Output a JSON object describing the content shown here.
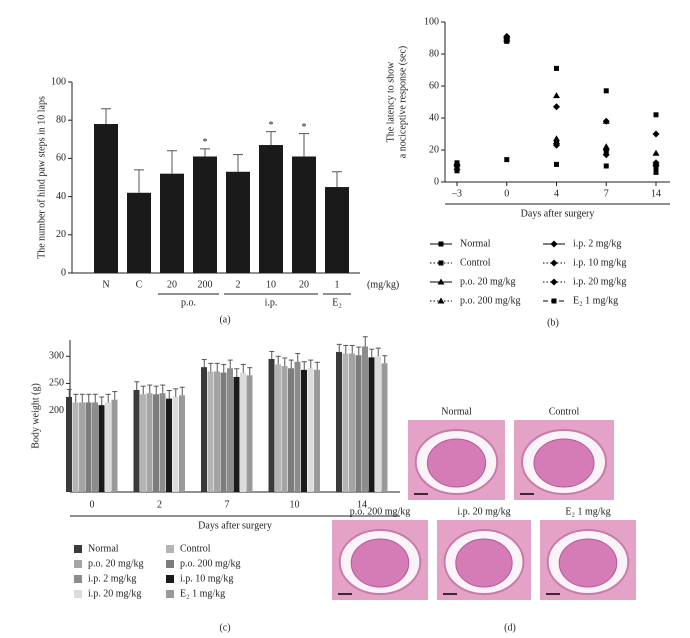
{
  "chart_data": [
    {
      "type": "bar",
      "ylabel": "The number of hind paw steps in 10 laps",
      "categories": [
        "N",
        "C",
        "20",
        "200",
        "2",
        "10",
        "20",
        "1"
      ],
      "groups": [
        null,
        null,
        "p.o.",
        "p.o.",
        "i.p.",
        "i.p.",
        "i.p.",
        "E₂"
      ],
      "unit": "(mg/kg)",
      "values": [
        78,
        42,
        52,
        61,
        53,
        67,
        61,
        45
      ],
      "errors": [
        8,
        12,
        12,
        4,
        9,
        7,
        12,
        8
      ],
      "markers": [
        null,
        null,
        null,
        "*",
        null,
        "*",
        "*",
        null
      ],
      "color": "#1a1a1a",
      "ylim": [
        0,
        100
      ],
      "yticks": [
        0,
        20,
        40,
        60,
        80,
        100
      ],
      "caption": "(a)"
    },
    {
      "type": "line",
      "ylabel": [
        "The latency to show",
        "a nociceptive response (sec)"
      ],
      "xlabel": "Days after surgery",
      "categories": [
        "–3",
        "0",
        "4",
        "7",
        "14"
      ],
      "ylim": [
        0,
        100
      ],
      "yticks": [
        0,
        20,
        40,
        60,
        80,
        100
      ],
      "series": [
        {
          "name": "Normal",
          "color": "#000000",
          "dash": "solid",
          "marker": "square",
          "values": [
            7,
            14,
            11,
            10,
            6
          ]
        },
        {
          "name": "Control",
          "color": "#000000",
          "dash": "dotted",
          "marker": "square",
          "values": [
            8,
            88,
            71,
            57,
            42
          ]
        },
        {
          "name": "p.o. 20 mg/kg",
          "color": "#000000",
          "dash": "solid",
          "marker": "triangle",
          "values": [
            9,
            90,
            54,
            38,
            18
          ]
        },
        {
          "name": "p.o. 200 mg/kg",
          "color": "#000000",
          "dash": "dotted",
          "marker": "triangle",
          "values": [
            9,
            89,
            27,
            22,
            12
          ]
        },
        {
          "name": "i.p. 2 mg/kg",
          "color": "#000000",
          "dash": "solid",
          "marker": "diamond",
          "values": [
            10,
            91,
            47,
            38,
            30
          ]
        },
        {
          "name": "i.p. 10 mg/kg",
          "color": "#000000",
          "dash": "dotted",
          "marker": "diamond",
          "values": [
            10,
            90,
            24,
            20,
            12
          ]
        },
        {
          "name": "i.p. 20 mg/kg",
          "color": "#000000",
          "dash": "dotted",
          "marker": "diamond",
          "values": [
            11,
            90,
            23,
            17,
            10
          ]
        },
        {
          "name": "E₂ 1 mg/kg",
          "color": "#000000",
          "dash": "dashed",
          "marker": "square",
          "values": [
            12,
            88,
            25,
            18,
            9
          ]
        }
      ],
      "caption": "(b)"
    },
    {
      "type": "bar",
      "ylabel": "Body weight (g)",
      "xlabel": "Days after surgery",
      "categories": [
        "0",
        "2",
        "7",
        "10",
        "14"
      ],
      "ylim": [
        50,
        330
      ],
      "yticks": [
        200,
        250,
        300
      ],
      "series": [
        {
          "name": "Normal",
          "color": "#3a3a3a",
          "values": [
            225,
            238,
            280,
            295,
            308
          ],
          "errors": [
            14,
            15,
            14,
            14,
            14
          ]
        },
        {
          "name": "Control",
          "color": "#b4b4b4",
          "values": [
            215,
            230,
            272,
            285,
            305
          ],
          "errors": [
            15,
            15,
            15,
            15,
            15
          ]
        },
        {
          "name": "p.o. 20 mg/kg",
          "color": "#a4a4a4",
          "values": [
            215,
            232,
            272,
            282,
            305
          ],
          "errors": [
            15,
            15,
            15,
            15,
            15
          ]
        },
        {
          "name": "p.o. 200 mg/kg",
          "color": "#7c7c7c",
          "values": [
            215,
            230,
            270,
            278,
            302
          ],
          "errors": [
            15,
            15,
            15,
            15,
            15
          ]
        },
        {
          "name": "i.p. 2 mg/kg",
          "color": "#8c8c8c",
          "values": [
            215,
            232,
            278,
            290,
            318
          ],
          "errors": [
            15,
            15,
            15,
            15,
            18
          ]
        },
        {
          "name": "i.p. 10 mg/kg",
          "color": "#1a1a1a",
          "values": [
            210,
            222,
            262,
            275,
            298
          ],
          "errors": [
            15,
            15,
            15,
            15,
            15
          ]
        },
        {
          "name": "i.p. 20 mg/kg",
          "color": "#dcdcdc",
          "values": [
            215,
            225,
            270,
            278,
            300
          ],
          "errors": [
            15,
            15,
            15,
            15,
            15
          ]
        },
        {
          "name": "E₂ 1 mg/kg",
          "color": "#9a9a9a",
          "values": [
            220,
            228,
            265,
            275,
            287
          ],
          "errors": [
            15,
            15,
            14,
            14,
            14
          ]
        }
      ],
      "caption": "(c)"
    }
  ],
  "images": {
    "labels": [
      "Normal",
      "Control",
      "p.o. 200 mg/kg",
      "i.p. 20 mg/kg",
      "E₂ 1 mg/kg"
    ],
    "caption": "(d)"
  }
}
